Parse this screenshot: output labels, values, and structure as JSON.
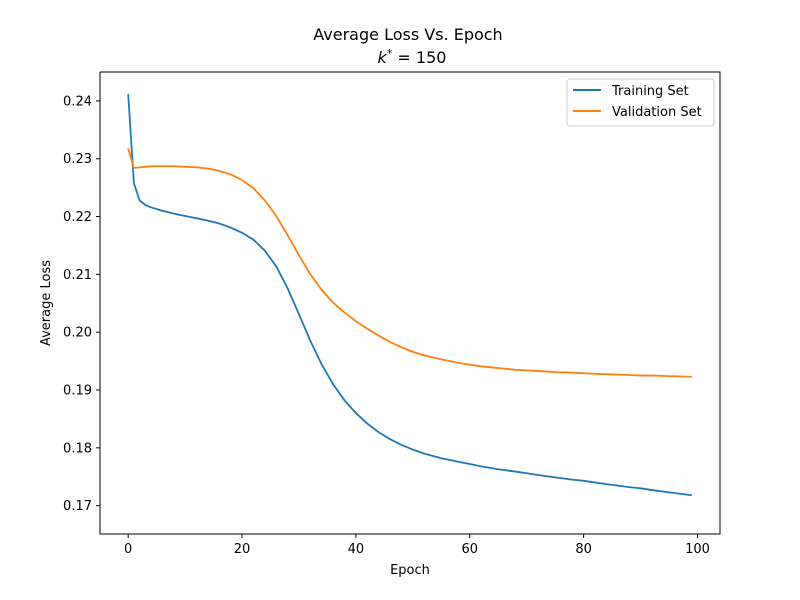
{
  "chart_data": {
    "type": "line",
    "title": "Average Loss Vs. Epoch",
    "subtitle_prefix": "k",
    "subtitle_sup": "*",
    "subtitle_suffix": " = 150",
    "xlabel": "Epoch",
    "ylabel": "Average Loss",
    "xlim": [
      -4.95,
      103.95
    ],
    "ylim": [
      0.1651,
      0.245
    ],
    "xticks": [
      0,
      20,
      40,
      60,
      80,
      100
    ],
    "yticks": [
      0.17,
      0.18,
      0.19,
      0.2,
      0.21,
      0.22,
      0.23,
      0.24
    ],
    "xtick_labels": [
      "0",
      "20",
      "40",
      "60",
      "80",
      "100"
    ],
    "ytick_labels": [
      "0.17",
      "0.18",
      "0.19",
      "0.20",
      "0.21",
      "0.22",
      "0.23",
      "0.24"
    ],
    "grid": false,
    "legend_position": "top-right",
    "series": [
      {
        "name": "Training Set",
        "color": "#1f77b4",
        "x": [
          0,
          1,
          2,
          3,
          4,
          6,
          8,
          10,
          12,
          14,
          16,
          18,
          20,
          22,
          24,
          26,
          28,
          30,
          32,
          34,
          36,
          38,
          40,
          42,
          44,
          46,
          48,
          50,
          52,
          55,
          58,
          60,
          62,
          65,
          68,
          70,
          72,
          75,
          78,
          80,
          82,
          85,
          88,
          90,
          92,
          95,
          99
        ],
        "y": [
          0.2412,
          0.2258,
          0.2228,
          0.222,
          0.2216,
          0.221,
          0.2205,
          0.2201,
          0.2197,
          0.2193,
          0.2188,
          0.2181,
          0.2172,
          0.216,
          0.2141,
          0.2114,
          0.2076,
          0.2031,
          0.1985,
          0.1944,
          0.191,
          0.1882,
          0.186,
          0.1842,
          0.1827,
          0.1815,
          0.1805,
          0.1797,
          0.179,
          0.1782,
          0.1776,
          0.1772,
          0.1768,
          0.1763,
          0.1759,
          0.1756,
          0.1753,
          0.1749,
          0.1745,
          0.1743,
          0.174,
          0.1736,
          0.1732,
          0.173,
          0.1727,
          0.1723,
          0.1718
        ]
      },
      {
        "name": "Validation Set",
        "color": "#ff7f0e",
        "x": [
          0,
          1,
          2,
          3,
          4,
          6,
          8,
          10,
          12,
          14,
          16,
          18,
          20,
          22,
          24,
          26,
          28,
          30,
          32,
          34,
          36,
          38,
          40,
          42,
          44,
          46,
          48,
          50,
          52,
          55,
          58,
          60,
          62,
          65,
          68,
          70,
          72,
          75,
          78,
          80,
          82,
          85,
          88,
          90,
          92,
          95,
          99
        ],
        "y": [
          0.2318,
          0.2284,
          0.2285,
          0.2286,
          0.2287,
          0.2287,
          0.2287,
          0.2286,
          0.2285,
          0.2283,
          0.2279,
          0.2273,
          0.2263,
          0.2249,
          0.2228,
          0.2201,
          0.2168,
          0.2133,
          0.21,
          0.2073,
          0.2051,
          0.2034,
          0.2019,
          0.2006,
          0.1994,
          0.1983,
          0.1974,
          0.1966,
          0.196,
          0.1953,
          0.1947,
          0.1944,
          0.1941,
          0.1938,
          0.1935,
          0.1934,
          0.1933,
          0.1931,
          0.193,
          0.1929,
          0.1928,
          0.1927,
          0.1926,
          0.1925,
          0.1925,
          0.1924,
          0.1923
        ]
      }
    ]
  }
}
